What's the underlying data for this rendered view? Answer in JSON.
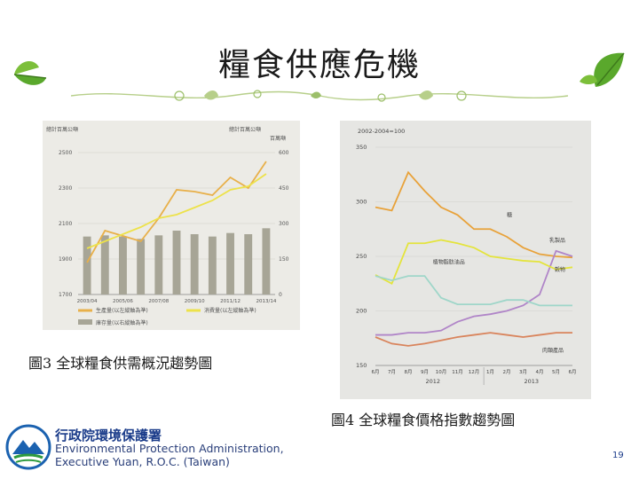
{
  "slide": {
    "title": "糧食供應危機",
    "page_number": "19",
    "org_name_zh": "行政院環境保護署",
    "org_name_en_line1": "Environmental Protection Administration,",
    "org_name_en_line2": "Executive Yuan, R.O.C. (Taiwan)"
  },
  "captions": {
    "fig3": "圖3 全球糧食供需概況趨勢圖",
    "fig4": "圖4 全球糧食價格指數趨勢圖"
  },
  "chart_data": [
    {
      "id": "fig3",
      "type": "bar",
      "title_left": "總計百萬公噸",
      "title_right": "總計百萬公噸",
      "unit_right": "百萬噸",
      "categories": [
        "2003/04",
        "",
        "2005/06",
        "",
        "2007/08",
        "",
        "2009/10",
        "",
        "2011/12",
        "",
        "2013/14"
      ],
      "x_tick_labels": [
        "2003/04",
        "2005/06",
        "2007/08",
        "2009/10",
        "2011/12",
        "2013/14"
      ],
      "ylim_left": [
        1700,
        2500
      ],
      "yticks_left": [
        "1700",
        "1900",
        "2100",
        "2300",
        "2500"
      ],
      "ylim_right": [
        0,
        600
      ],
      "yticks_right": [
        "0",
        "150",
        "300",
        "450",
        "600"
      ],
      "series": [
        {
          "name": "庫存量(以右縱軸為準)",
          "kind": "bar",
          "axis": "right",
          "color": "#a7a596",
          "values": [
            245,
            250,
            245,
            235,
            250,
            270,
            255,
            245,
            260,
            255,
            280
          ]
        },
        {
          "name": "生產量(以左縱軸為準)",
          "kind": "line",
          "axis": "left",
          "color": "#e8b04a",
          "values": [
            1880,
            2060,
            2030,
            2000,
            2130,
            2290,
            2280,
            2260,
            2360,
            2300,
            2450
          ]
        },
        {
          "name": "消費量(以左縱軸為準)",
          "kind": "line",
          "axis": "left",
          "color": "#ede24a",
          "values": [
            1960,
            2000,
            2040,
            2080,
            2130,
            2150,
            2190,
            2230,
            2290,
            2310,
            2380
          ]
        }
      ],
      "legend": [
        "生產量(以左縱軸為準)",
        "消費量(以左縱軸為準)",
        "庫存量(以右縱軸為準)"
      ]
    },
    {
      "id": "fig4",
      "type": "line",
      "ylabel": "2002-2004=100",
      "ylim": [
        150,
        350
      ],
      "yticks": [
        "150",
        "200",
        "250",
        "300",
        "350"
      ],
      "x_tick_labels": [
        "6月",
        "7月",
        "8月",
        "9月",
        "10月",
        "11月",
        "12月",
        "1月",
        "2月",
        "3月",
        "4月",
        "5月",
        "6月"
      ],
      "year_labels": [
        "2012",
        "2013"
      ],
      "series": [
        {
          "name": "糖",
          "color": "#e8a23a",
          "values": [
            295,
            292,
            327,
            310,
            295,
            288,
            275,
            275,
            268,
            258,
            252,
            250,
            249
          ]
        },
        {
          "name": "乳製品",
          "color": "#b085c8",
          "values": [
            178,
            178,
            180,
            180,
            182,
            190,
            195,
            197,
            200,
            205,
            215,
            255,
            250
          ]
        },
        {
          "name": "植物脂肪油品",
          "color": "#e4e43c",
          "values": [
            233,
            225,
            262,
            262,
            265,
            262,
            258,
            250,
            248,
            246,
            245,
            238,
            240
          ]
        },
        {
          "name": "穀物",
          "color": "#9fd6c9",
          "values": [
            232,
            228,
            232,
            232,
            212,
            206,
            206,
            206,
            210,
            210,
            205,
            205,
            205
          ]
        },
        {
          "name": "肉類產品",
          "color": "#d9845c",
          "values": [
            176,
            170,
            168,
            170,
            173,
            176,
            178,
            180,
            178,
            176,
            178,
            180,
            180
          ]
        }
      ],
      "labels": {
        "sugar": "糖",
        "dairy": "乳製品",
        "oils": "植物脂肪油品",
        "cereals": "穀物",
        "meat": "肉類產品"
      }
    }
  ]
}
